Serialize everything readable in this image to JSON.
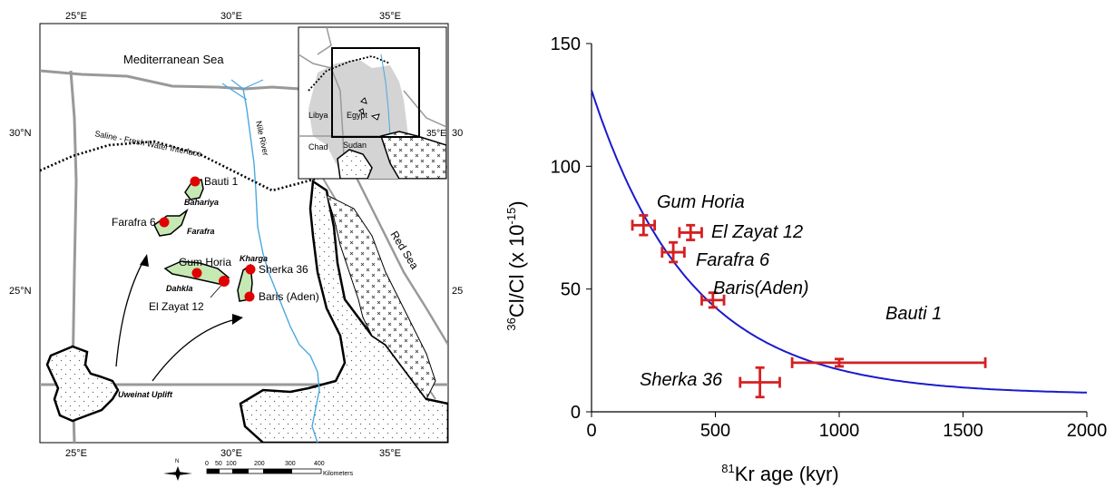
{
  "map": {
    "lon_labels": [
      "25°E",
      "30°E",
      "35°E"
    ],
    "lat_labels": [
      "30°N",
      "25°N"
    ],
    "inset_lon_label": "35°E",
    "inset_lat_label": "30°N",
    "sea_north": "Mediterranean Sea",
    "sea_east": "Red Sea",
    "river": "Nile River",
    "interface": "Saline - Fresh Water Interface",
    "uplift": "Uweinat Uplift",
    "oases": {
      "bahariya": "Bahariya",
      "farafra": "Farafra",
      "dakhla": "Dahkla",
      "kharga": "Kharga"
    },
    "wells": {
      "bauti": "Bauti 1",
      "farafra6": "Farafra 6",
      "gum_horia": "Gum Horia",
      "el_zayat": "El Zayat 12",
      "sherka": "Sherka 36",
      "baris": "Baris (Aden)"
    },
    "inset": {
      "libya": "Libya",
      "egypt": "Egypt",
      "chad": "Chad",
      "sudan": "Sudan"
    },
    "scale": {
      "ticks": [
        "0",
        "50",
        "100",
        "200",
        "300",
        "400"
      ],
      "unit": "Kilometers"
    },
    "north_letter": "N"
  },
  "chart_data": {
    "type": "scatter",
    "xlabel_sup": "81",
    "xlabel": "Kr age (kyr)",
    "ylabel_sup": "36",
    "ylabel": "Cl/Cl (x 10",
    "ylabel_exp": "-15",
    "ylabel_close": ")",
    "xlim": [
      0,
      2000
    ],
    "ylim": [
      0,
      150
    ],
    "xticks": [
      "0",
      "500",
      "1000",
      "1500",
      "2000"
    ],
    "yticks": [
      "0",
      "50",
      "100",
      "150"
    ],
    "points": [
      {
        "label": "Gum Horia",
        "x": 210,
        "y": 76,
        "xerr": 45,
        "yerr": 4
      },
      {
        "label": "El Zayat 12",
        "x": 400,
        "y": 73,
        "xerr": 45,
        "yerr": 3
      },
      {
        "label": "Farafra 6",
        "x": 330,
        "y": 65,
        "xerr": 45,
        "yerr": 4
      },
      {
        "label": "Baris(Aden)",
        "x": 490,
        "y": 45.5,
        "xerr": 45,
        "yerr": 3
      },
      {
        "label": "Sherka 36",
        "x": 680,
        "y": 12,
        "xerr": 80,
        "yerr": 6
      },
      {
        "label": "Bauti 1",
        "x": 1000,
        "y": 20,
        "xerr_low": 190,
        "xerr_high": 590,
        "yerr": 1.5
      }
    ],
    "curve": {
      "y0": 131,
      "y_inf": 7,
      "decay_scale": 400
    },
    "colors": {
      "points": "#d42020",
      "curve": "#1a1acf"
    }
  }
}
